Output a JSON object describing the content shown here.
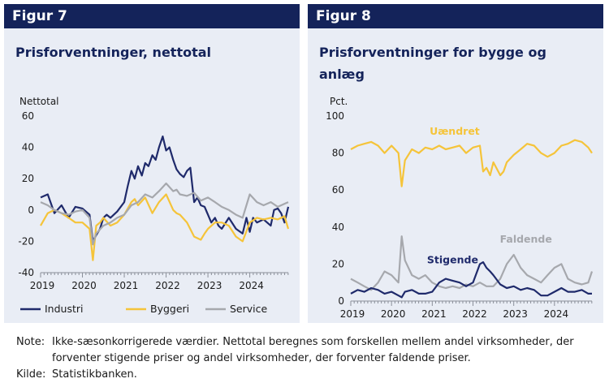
{
  "panels": [
    {
      "tag": "Figur 7",
      "title": "Prisforventninger, nettotal"
    },
    {
      "tag": "Figur 8",
      "title": "Prisforventninger for bygge og anlæg"
    }
  ],
  "notes": {
    "note_label": "Note:",
    "note_text": "Ikke-sæsonkorrigerede værdier. Nettotal beregnes som forskellen mellem andel virksomheder, der forventer stigende priser og andel virksomheder, der forventer faldende priser.",
    "source_label": "Kilde:",
    "source_text": "Statistikbanken."
  },
  "chart_data": [
    {
      "type": "line",
      "title": "Prisforventninger, nettotal",
      "ylabel": "Nettotal",
      "xlabel": "",
      "xlim": [
        2019,
        2024.92
      ],
      "ylim": [
        -40,
        60
      ],
      "yticks": [
        -40,
        -20,
        0,
        20,
        40,
        60
      ],
      "xticks": [
        2019,
        2020,
        2021,
        2022,
        2023,
        2024
      ],
      "grid": false,
      "legend": "bottom",
      "series": [
        {
          "name": "Industri",
          "color": "#1f2a6b",
          "x": [
            2019.0,
            2019.17,
            2019.33,
            2019.5,
            2019.67,
            2019.83,
            2020.0,
            2020.17,
            2020.25,
            2020.33,
            2020.42,
            2020.5,
            2020.58,
            2020.67,
            2020.83,
            2021.0,
            2021.08,
            2021.17,
            2021.25,
            2021.33,
            2021.42,
            2021.5,
            2021.58,
            2021.67,
            2021.75,
            2021.83,
            2021.92,
            2022.0,
            2022.08,
            2022.17,
            2022.25,
            2022.33,
            2022.42,
            2022.5,
            2022.58,
            2022.67,
            2022.75,
            2022.83,
            2022.92,
            2023.0,
            2023.08,
            2023.17,
            2023.25,
            2023.33,
            2023.5,
            2023.67,
            2023.83,
            2023.92,
            2024.0,
            2024.08,
            2024.17,
            2024.33,
            2024.5,
            2024.58,
            2024.67,
            2024.75,
            2024.83,
            2024.92
          ],
          "y": [
            8,
            10,
            -2,
            3,
            -5,
            2,
            1,
            -3,
            -20,
            -16,
            -12,
            -5,
            -3,
            -5,
            -1,
            5,
            15,
            25,
            20,
            28,
            22,
            30,
            28,
            35,
            32,
            40,
            47,
            38,
            40,
            32,
            26,
            23,
            21,
            25,
            27,
            5,
            8,
            3,
            2,
            -3,
            -8,
            -5,
            -10,
            -12,
            -5,
            -12,
            -15,
            -5,
            -14,
            -5,
            -8,
            -6,
            -10,
            0,
            1,
            -2,
            -8,
            2
          ]
        },
        {
          "name": "Byggeri",
          "color": "#f5c43a",
          "x": [
            2019.0,
            2019.17,
            2019.33,
            2019.5,
            2019.67,
            2019.83,
            2020.0,
            2020.17,
            2020.25,
            2020.33,
            2020.42,
            2020.5,
            2020.67,
            2020.83,
            2021.0,
            2021.17,
            2021.25,
            2021.33,
            2021.5,
            2021.67,
            2021.83,
            2022.0,
            2022.17,
            2022.25,
            2022.33,
            2022.5,
            2022.67,
            2022.83,
            2022.92,
            2023.0,
            2023.17,
            2023.33,
            2023.5,
            2023.67,
            2023.83,
            2024.0,
            2024.17,
            2024.33,
            2024.5,
            2024.67,
            2024.83,
            2024.92
          ],
          "y": [
            -10,
            -2,
            0,
            -2,
            -5,
            -8,
            -8,
            -12,
            -32,
            -10,
            -8,
            -5,
            -10,
            -8,
            -3,
            5,
            7,
            3,
            8,
            -2,
            5,
            10,
            0,
            -2,
            -3,
            -8,
            -17,
            -19,
            -15,
            -12,
            -8,
            -8,
            -10,
            -17,
            -20,
            -8,
            -5,
            -6,
            -5,
            -6,
            -4,
            -12
          ]
        },
        {
          "name": "Service",
          "color": "#a6a8ad",
          "x": [
            2019.0,
            2019.17,
            2019.33,
            2019.5,
            2019.67,
            2019.83,
            2020.0,
            2020.17,
            2020.25,
            2020.33,
            2020.5,
            2020.67,
            2020.83,
            2021.0,
            2021.17,
            2021.33,
            2021.5,
            2021.67,
            2021.83,
            2022.0,
            2022.17,
            2022.25,
            2022.33,
            2022.5,
            2022.67,
            2022.83,
            2023.0,
            2023.17,
            2023.33,
            2023.5,
            2023.67,
            2023.83,
            2024.0,
            2024.17,
            2024.33,
            2024.5,
            2024.67,
            2024.83,
            2024.92
          ],
          "y": [
            5,
            3,
            0,
            -2,
            -3,
            -1,
            0,
            -5,
            -22,
            -15,
            -10,
            -8,
            -5,
            -3,
            3,
            5,
            10,
            8,
            12,
            17,
            12,
            13,
            10,
            9,
            11,
            6,
            8,
            5,
            2,
            0,
            -3,
            -5,
            10,
            5,
            3,
            5,
            2,
            4,
            5
          ]
        }
      ]
    },
    {
      "type": "line",
      "title": "Prisforventninger for bygge og anlæg",
      "ylabel": "Pct.",
      "xlabel": "",
      "xlim": [
        2019,
        2024.92
      ],
      "ylim": [
        0,
        100
      ],
      "yticks": [
        0,
        20,
        40,
        60,
        80,
        100
      ],
      "xticks": [
        2019,
        2020,
        2021,
        2022,
        2023,
        2024
      ],
      "grid": false,
      "legend": "inline",
      "annotations": [
        {
          "text": "Uændret",
          "series": "Uændret"
        },
        {
          "text": "Faldende",
          "series": "Faldende"
        },
        {
          "text": "Stigende",
          "series": "Stigende"
        }
      ],
      "series": [
        {
          "name": "Uændret",
          "color": "#f5c43a",
          "x": [
            2019.0,
            2019.17,
            2019.33,
            2019.5,
            2019.67,
            2019.83,
            2020.0,
            2020.17,
            2020.25,
            2020.33,
            2020.5,
            2020.67,
            2020.83,
            2021.0,
            2021.17,
            2021.33,
            2021.5,
            2021.67,
            2021.83,
            2022.0,
            2022.17,
            2022.25,
            2022.33,
            2022.42,
            2022.5,
            2022.67,
            2022.75,
            2022.83,
            2023.0,
            2023.17,
            2023.33,
            2023.5,
            2023.67,
            2023.83,
            2024.0,
            2024.17,
            2024.33,
            2024.5,
            2024.67,
            2024.83,
            2024.92
          ],
          "y": [
            82,
            84,
            85,
            86,
            84,
            80,
            84,
            80,
            62,
            76,
            82,
            80,
            83,
            82,
            84,
            82,
            83,
            84,
            80,
            83,
            84,
            70,
            72,
            68,
            75,
            68,
            70,
            75,
            79,
            82,
            85,
            84,
            80,
            78,
            80,
            84,
            85,
            87,
            86,
            83,
            80
          ]
        },
        {
          "name": "Faldende",
          "color": "#a6a8ad",
          "x": [
            2019.0,
            2019.17,
            2019.33,
            2019.5,
            2019.67,
            2019.83,
            2020.0,
            2020.17,
            2020.25,
            2020.33,
            2020.5,
            2020.67,
            2020.83,
            2021.0,
            2021.17,
            2021.33,
            2021.5,
            2021.67,
            2021.83,
            2022.0,
            2022.17,
            2022.33,
            2022.5,
            2022.67,
            2022.83,
            2023.0,
            2023.17,
            2023.33,
            2023.5,
            2023.67,
            2023.83,
            2024.0,
            2024.17,
            2024.33,
            2024.5,
            2024.67,
            2024.83,
            2024.92
          ],
          "y": [
            12,
            10,
            8,
            6,
            10,
            16,
            14,
            10,
            35,
            22,
            14,
            12,
            14,
            10,
            8,
            7,
            8,
            7,
            9,
            8,
            10,
            8,
            8,
            12,
            20,
            25,
            18,
            14,
            12,
            10,
            14,
            18,
            20,
            12,
            10,
            9,
            10,
            16
          ]
        },
        {
          "name": "Stigende",
          "color": "#1f2a6b",
          "x": [
            2019.0,
            2019.17,
            2019.33,
            2019.5,
            2019.67,
            2019.83,
            2020.0,
            2020.17,
            2020.25,
            2020.33,
            2020.5,
            2020.67,
            2020.83,
            2021.0,
            2021.17,
            2021.33,
            2021.5,
            2021.67,
            2021.83,
            2022.0,
            2022.17,
            2022.25,
            2022.33,
            2022.42,
            2022.5,
            2022.67,
            2022.83,
            2023.0,
            2023.17,
            2023.33,
            2023.5,
            2023.67,
            2023.83,
            2024.0,
            2024.17,
            2024.33,
            2024.5,
            2024.67,
            2024.83,
            2024.92
          ],
          "y": [
            4,
            6,
            5,
            7,
            6,
            4,
            5,
            3,
            2,
            5,
            6,
            4,
            4,
            5,
            10,
            12,
            11,
            10,
            8,
            10,
            20,
            21,
            18,
            16,
            14,
            9,
            7,
            8,
            6,
            7,
            6,
            3,
            3,
            5,
            7,
            5,
            5,
            6,
            4,
            4
          ]
        }
      ]
    }
  ]
}
